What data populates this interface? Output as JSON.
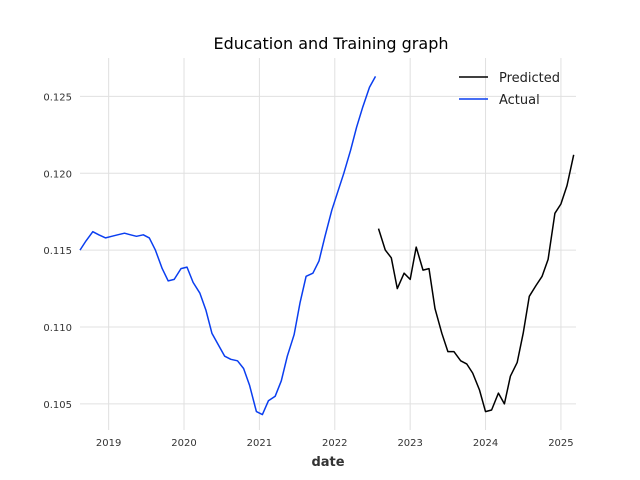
{
  "chart_data": {
    "type": "line",
    "title": "Education and Training graph",
    "xlabel": "date",
    "ylabel": "",
    "xlim": [
      2018.62,
      2025.2
    ],
    "ylim": [
      0.1033,
      0.1275
    ],
    "x_ticks": [
      2019,
      2020,
      2021,
      2022,
      2023,
      2024,
      2025
    ],
    "x_tick_labels": [
      "2019",
      "2020",
      "2021",
      "2022",
      "2023",
      "2024",
      "2025"
    ],
    "y_ticks": [
      0.105,
      0.11,
      0.115,
      0.12,
      0.125
    ],
    "y_tick_labels": [
      "0.105",
      "0.110",
      "0.115",
      "0.120",
      "0.125"
    ],
    "grid": true,
    "legend_position": "top-right",
    "series": [
      {
        "name": "Predicted",
        "color": "#000000",
        "x": [
          2022.58,
          2022.67,
          2022.75,
          2022.83,
          2022.92,
          2023.0,
          2023.08,
          2023.17,
          2023.25,
          2023.33,
          2023.42,
          2023.5,
          2023.58,
          2023.67,
          2023.75,
          2023.83,
          2023.92,
          2024.0,
          2024.08,
          2024.17,
          2024.25,
          2024.33,
          2024.42,
          2024.5,
          2024.58,
          2024.67,
          2024.75,
          2024.83,
          2024.92,
          2025.0,
          2025.08,
          2025.17
        ],
        "values": [
          0.1164,
          0.115,
          0.1145,
          0.1125,
          0.1135,
          0.1131,
          0.1152,
          0.1137,
          0.1138,
          0.1112,
          0.1096,
          0.1084,
          0.1084,
          0.1078,
          0.1076,
          0.107,
          0.1059,
          0.1045,
          0.1046,
          0.1057,
          0.105,
          0.1068,
          0.1077,
          0.1096,
          0.112,
          0.1127,
          0.1133,
          0.1144,
          0.1174,
          0.118,
          0.1192,
          0.1212
        ]
      },
      {
        "name": "Actual",
        "color": "#0a3ef0",
        "x": [
          2018.62,
          2018.7,
          2018.79,
          2018.87,
          2018.96,
          2019.04,
          2019.12,
          2019.21,
          2019.29,
          2019.37,
          2019.46,
          2019.54,
          2019.62,
          2019.71,
          2019.79,
          2019.87,
          2019.96,
          2020.04,
          2020.12,
          2020.21,
          2020.29,
          2020.37,
          2020.46,
          2020.54,
          2020.62,
          2020.71,
          2020.79,
          2020.87,
          2020.96,
          2021.04,
          2021.12,
          2021.21,
          2021.29,
          2021.37,
          2021.46,
          2021.54,
          2021.62,
          2021.71,
          2021.79,
          2021.87,
          2021.96,
          2022.04,
          2022.12,
          2022.21,
          2022.29,
          2022.37,
          2022.46,
          2022.54
        ],
        "values": [
          0.115,
          0.1156,
          0.1162,
          0.116,
          0.1158,
          0.1159,
          0.116,
          0.1161,
          0.116,
          0.1159,
          0.116,
          0.1158,
          0.115,
          0.1138,
          0.113,
          0.1131,
          0.1138,
          0.1139,
          0.1129,
          0.1122,
          0.1111,
          0.1096,
          0.1088,
          0.1081,
          0.1079,
          0.1078,
          0.1073,
          0.1062,
          0.1045,
          0.1043,
          0.1052,
          0.1055,
          0.1065,
          0.1081,
          0.1095,
          0.1116,
          0.1133,
          0.1135,
          0.1143,
          0.1159,
          0.1176,
          0.1188,
          0.12,
          0.1215,
          0.123,
          0.1243,
          0.1256,
          0.1263
        ]
      }
    ]
  }
}
